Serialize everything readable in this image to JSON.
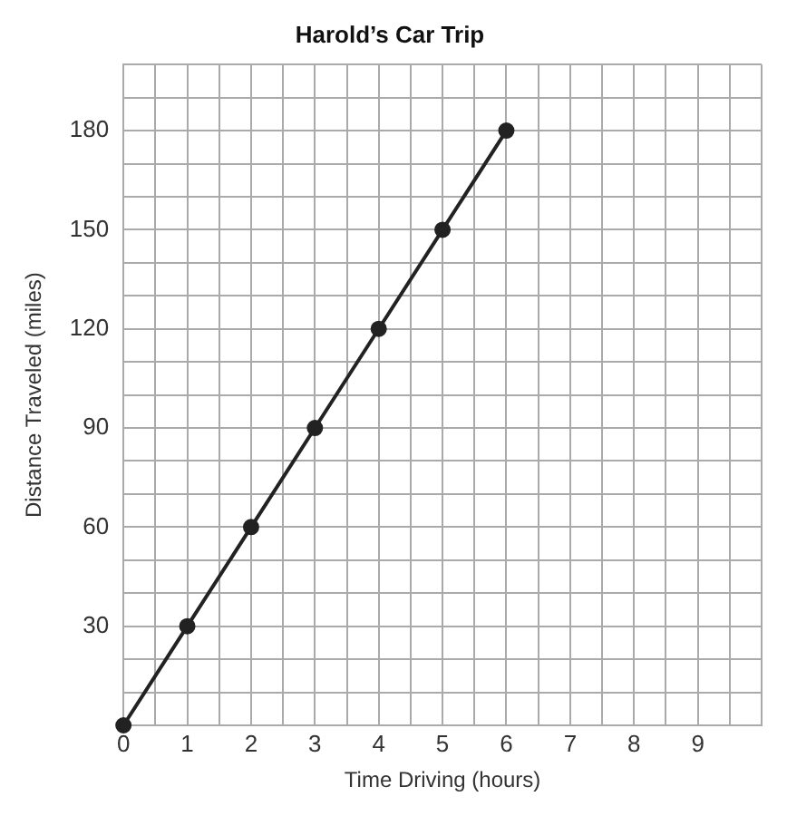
{
  "chart_data": {
    "type": "line",
    "title": "Harold’s Car Trip",
    "xlabel": "Time Driving (hours)",
    "ylabel": "Distance Traveled (miles)",
    "x": [
      0,
      1,
      2,
      3,
      4,
      5,
      6
    ],
    "series": [
      {
        "color": "#222222",
        "values": [
          0,
          30,
          60,
          90,
          120,
          150,
          180
        ]
      }
    ],
    "xlim": [
      0,
      10
    ],
    "ylim": [
      0,
      200
    ],
    "xticks": [
      0,
      {
        "value": 0.5,
        "label": null
      },
      1,
      {
        "value": 1.5,
        "label": null
      },
      2,
      {
        "value": 2.5,
        "label": null
      },
      3,
      {
        "value": 3.5,
        "label": null
      },
      4,
      {
        "value": 4.5,
        "label": null
      },
      5,
      {
        "value": 5.5,
        "label": null
      },
      6,
      {
        "value": 6.5,
        "label": null
      },
      7,
      {
        "value": 7.5,
        "label": null
      },
      8,
      {
        "value": 8.5,
        "label": null
      },
      9,
      {
        "value": 9.5,
        "label": null
      },
      {
        "value": 10,
        "label": null
      }
    ],
    "yticks": [
      {
        "value": 0,
        "label": null
      },
      {
        "value": 10,
        "label": null
      },
      {
        "value": 20,
        "label": null
      },
      30,
      {
        "value": 40,
        "label": null
      },
      {
        "value": 50,
        "label": null
      },
      60,
      {
        "value": 70,
        "label": null
      },
      {
        "value": 80,
        "label": null
      },
      90,
      {
        "value": 100,
        "label": null
      },
      {
        "value": 110,
        "label": null
      },
      120,
      {
        "value": 130,
        "label": null
      },
      {
        "value": 140,
        "label": null
      },
      150,
      {
        "value": 160,
        "label": null
      },
      {
        "value": 170,
        "label": null
      },
      180,
      {
        "value": 190,
        "label": null
      },
      {
        "value": 200,
        "label": null
      }
    ],
    "grid": true,
    "marker": "circle",
    "line_style": "solid",
    "legend": false
  }
}
